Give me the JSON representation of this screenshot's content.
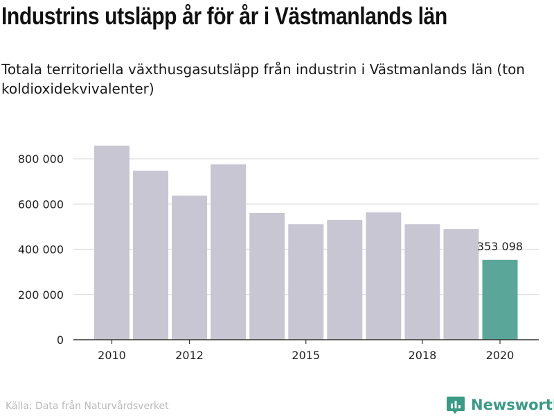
{
  "header": {
    "title": "Industrins utsläpp år för år i Västmanlands län",
    "subtitle": "Totala territoriella växthusgasutsläpp från industrin i Västmanlands län (ton koldioxidekvivalenter)"
  },
  "footer": {
    "source": "Källa: Data från Naturvårdsverket",
    "brand": "Newsworthy"
  },
  "colors": {
    "bar": "#c8c6d2",
    "highlight": "#5aa79a",
    "grid": "#dddddd",
    "axis": "#333333",
    "brand": "#3a9a86"
  },
  "icons": {
    "brand_logo": "bar-chart-pin-icon"
  },
  "chart_data": {
    "type": "bar",
    "title": "Industrins utsläpp år för år i Västmanlands län",
    "subtitle": "Totala territoriella växthusgasutsläpp från industrin i Västmanlands län (ton koldioxidekvivalenter)",
    "categories": [
      "2010",
      "2011",
      "2012",
      "2013",
      "2014",
      "2015",
      "2016",
      "2017",
      "2018",
      "2019",
      "2020"
    ],
    "values": [
      858000,
      747000,
      637000,
      775000,
      561000,
      511000,
      530000,
      563000,
      511000,
      490000,
      353098
    ],
    "x_tick_labels": [
      "2010",
      "2012",
      "2015",
      "2018",
      "2020"
    ],
    "y_ticks": [
      0,
      200000,
      400000,
      600000,
      800000
    ],
    "y_tick_labels": [
      "0",
      "200 000",
      "400 000",
      "600 000",
      "800 000"
    ],
    "ylim": [
      0,
      900000
    ],
    "highlight_index": 10,
    "highlight_label": "353 098",
    "grid": true,
    "xlabel": "",
    "ylabel": ""
  }
}
